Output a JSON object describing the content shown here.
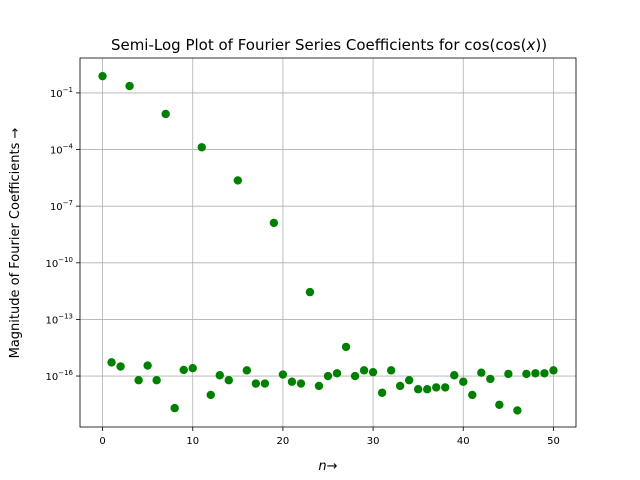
{
  "chart_data": {
    "type": "scatter",
    "title": "Semi-Log Plot of Fourier Series Coefficients for cos(cos(x))",
    "title_parts": {
      "prefix": "Semi-Log Plot of Fourier Series Coefficients for cos(cos(",
      "var": "x",
      "suffix": "))"
    },
    "xlabel": "n→",
    "xlabel_parts": {
      "var": "n",
      "arrow": "→"
    },
    "ylabel": "Magnitude of Fourier Coefficients →",
    "x_ticks": [
      0,
      10,
      20,
      30,
      40,
      50
    ],
    "y_ticks": [
      -1,
      -4,
      -7,
      -10,
      -13,
      -16
    ],
    "y_tick_base": "10",
    "y_tick_exponents": [
      "−1",
      "−4",
      "−7",
      "−10",
      "−13",
      "−16"
    ],
    "xlim": [
      -2.5,
      52.5
    ],
    "ylim_log10": [
      -18.7,
      0.85
    ],
    "yscale": "log",
    "grid": true,
    "marker_color": "#008000",
    "x": [
      0,
      1,
      2,
      3,
      4,
      5,
      6,
      7,
      8,
      9,
      10,
      11,
      12,
      13,
      14,
      15,
      16,
      17,
      18,
      19,
      20,
      21,
      22,
      23,
      24,
      25,
      26,
      27,
      28,
      29,
      30,
      31,
      32,
      33,
      34,
      35,
      36,
      37,
      38,
      39,
      40,
      41,
      42,
      43,
      44,
      45,
      46,
      47,
      48,
      49,
      50
    ],
    "y": [
      0.77,
      5.3e-16,
      3.2e-16,
      0.232,
      6e-17,
      3.6e-16,
      6e-17,
      0.00766,
      2e-18,
      2.1e-16,
      2.6e-16,
      0.000132,
      1e-17,
      1.1e-16,
      6e-17,
      2.3e-06,
      2e-16,
      4e-17,
      4e-17,
      1.3e-08,
      1.2e-16,
      5e-17,
      4e-17,
      2.8e-12,
      3e-17,
      1e-16,
      1.4e-16,
      3.5e-15,
      1e-16,
      2e-16,
      1.6e-16,
      1.3e-17,
      2e-16,
      3e-17,
      6e-17,
      2e-17,
      2e-17,
      2.5e-17,
      2.5e-17,
      1.1e-16,
      5e-17,
      1e-17,
      1.5e-16,
      7e-17,
      3e-18,
      1.3e-16,
      1.5e-18,
      1.3e-16,
      1.4e-16,
      1.4e-16,
      2e-16
    ]
  }
}
